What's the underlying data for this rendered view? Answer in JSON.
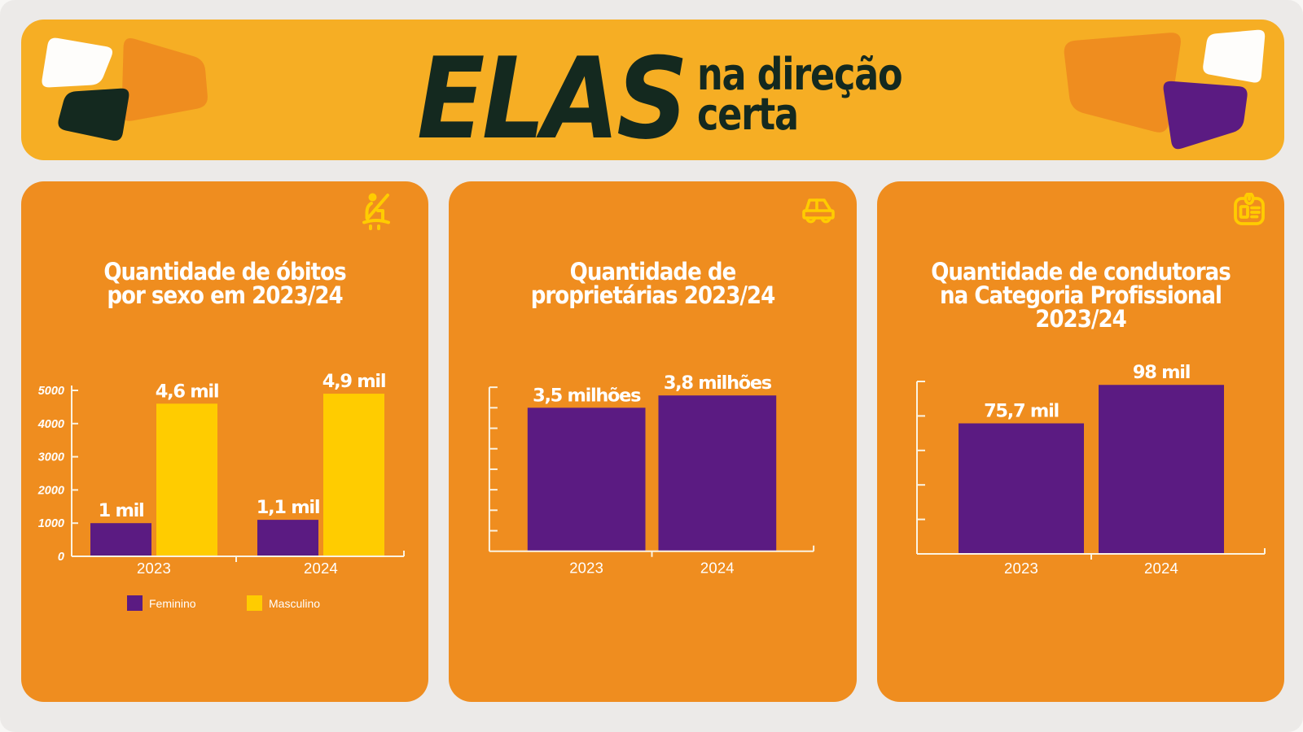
{
  "palette": {
    "page_background": "#F8F7F5",
    "panel_background": "#ECEAE8",
    "banner_background": "#F6AE24",
    "card_background": "#EF8D1F",
    "dark": "#14291F",
    "purple": "#5B1B82",
    "yellow": "#FFCC00",
    "white": "#FEFDFB",
    "axis": "#FBF3E2",
    "decor_orange": "#EF8D1F"
  },
  "header": {
    "title_main": "ELAS",
    "tagline_line1": "na direção",
    "tagline_line2": "certa"
  },
  "cards": [
    {
      "icon": "seatbelt-icon",
      "title_lines": [
        "Quantidade de óbitos",
        "por sexo em 2023/24"
      ]
    },
    {
      "icon": "car-icon",
      "title_lines": [
        "Quantidade de",
        "proprietárias 2023/24"
      ]
    },
    {
      "icon": "id-card-icon",
      "title_lines": [
        "Quantidade de condutoras",
        "na Categoria Profissional",
        "2023/24"
      ]
    }
  ],
  "chart_data": [
    {
      "type": "bar",
      "title": "Quantidade de óbitos por sexo em 2023/24",
      "categories": [
        "2023",
        "2024"
      ],
      "series": [
        {
          "name": "Feminino",
          "color": "#5B1B82",
          "values": [
            1000,
            1100
          ],
          "data_labels": [
            "1 mil",
            "1,1 mil"
          ]
        },
        {
          "name": "Masculino",
          "color": "#FFCC00",
          "values": [
            4600,
            4900
          ],
          "data_labels": [
            "4,6 mil",
            "4,9 mil"
          ]
        }
      ],
      "ylim": [
        0,
        5000
      ],
      "yticks": [
        0,
        1000,
        2000,
        3000,
        4000,
        5000
      ],
      "grid": false,
      "legend_position": "bottom"
    },
    {
      "type": "bar",
      "title": "Quantidade de proprietárias 2023/24",
      "categories": [
        "2023",
        "2024"
      ],
      "series": [
        {
          "name": "Proprietárias",
          "color": "#5B1B82",
          "values": [
            3.5,
            3.8
          ],
          "data_labels": [
            "3,5 milhões",
            "3,8 milhões"
          ]
        }
      ],
      "ylim": [
        0,
        4.0
      ],
      "ytick_count": 8,
      "grid": false,
      "legend_position": "none"
    },
    {
      "type": "bar",
      "title": "Quantidade de condutoras na Categoria Profissional 2023/24",
      "categories": [
        "2023",
        "2024"
      ],
      "series": [
        {
          "name": "Condutoras",
          "color": "#5B1B82",
          "values": [
            75.7,
            98
          ],
          "data_labels": [
            "75,7 mil",
            "98 mil"
          ]
        }
      ],
      "ylim": [
        0,
        100
      ],
      "ytick_count": 5,
      "grid": false,
      "legend_position": "none"
    }
  ]
}
